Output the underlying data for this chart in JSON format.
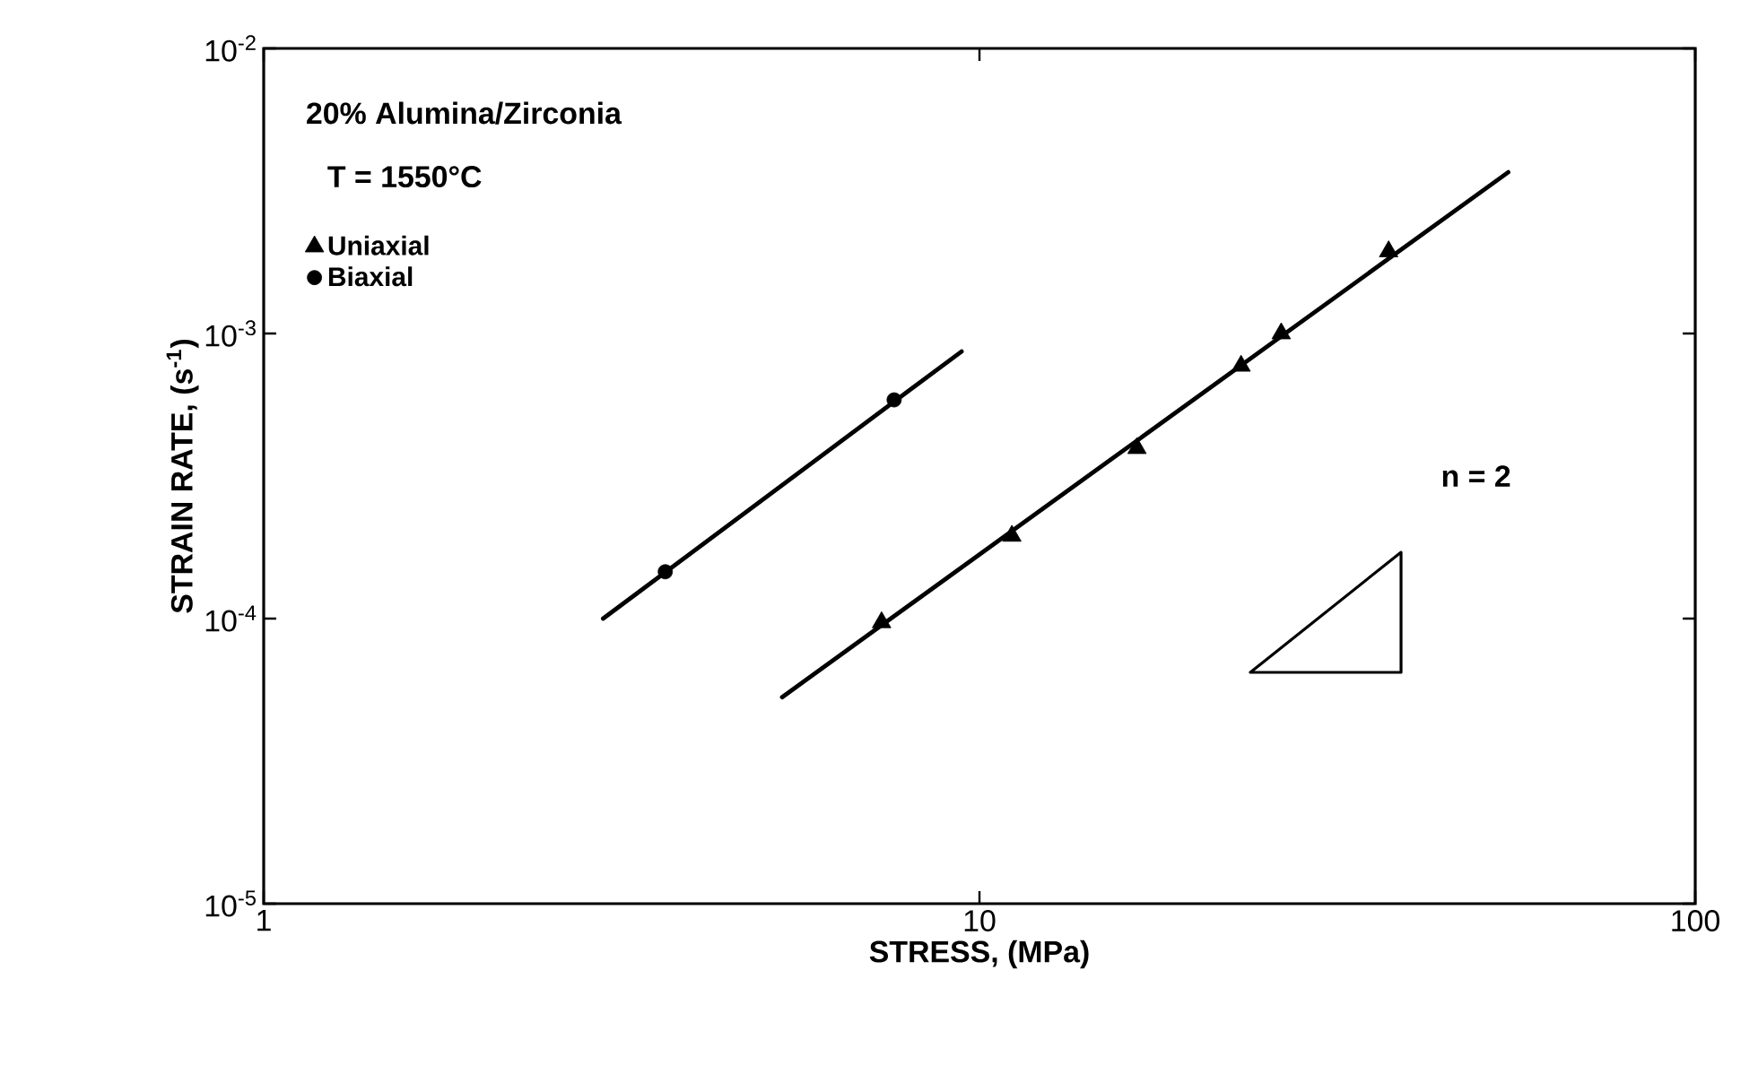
{
  "chart_data": {
    "type": "scatter",
    "xlabel": "STRESS, (MPa)",
    "ylabel": "STRAIN RATE, (s$^{-1}$)",
    "log": "xy",
    "legend": "top left",
    "annotations": [
      "20% Alumina/Zirconia",
      "T = 1550°C",
      "n = 2"
    ],
    "xlim": [
      1,
      100
    ],
    "ylim": [
      1e-05,
      0.01
    ],
    "xticks": [
      {
        "value": 1,
        "label": "1"
      },
      {
        "value": 10,
        "label": "10"
      },
      {
        "value": 100,
        "label": "100"
      }
    ],
    "yticks": [
      {
        "value": 1e-05,
        "label": "10$^{-5}$"
      },
      {
        "value": 0.0001,
        "label": "10$^{-4}$"
      },
      {
        "value": 0.001,
        "label": "10$^{-3}$"
      },
      {
        "value": 0.01,
        "label": "10$^{-2}$"
      }
    ],
    "series": [
      {
        "name": "Uniaxial",
        "type": "scatter",
        "marker": "triangle",
        "color": "#000000",
        "x": [
          7.3,
          11.1,
          16.6,
          23.2,
          26.4,
          37.3
        ],
        "values": [
          9.7e-05,
          0.000195,
          0.000396,
          0.00077,
          0.001,
          0.00194
        ]
      },
      {
        "name": "Biaxial",
        "type": "scatter",
        "marker": "circle",
        "color": "#000000",
        "x": [
          3.64,
          7.6
        ],
        "values": [
          0.000146,
          0.000585
        ]
      },
      {
        "type": "line",
        "color": "#000000",
        "x": [
          5.3,
          54.8
        ],
        "values": [
          5.3e-05,
          0.00368
        ]
      },
      {
        "type": "line",
        "color": "#000000",
        "x": [
          2.98,
          9.44
        ],
        "values": [
          0.0001,
          0.000865
        ]
      }
    ]
  }
}
